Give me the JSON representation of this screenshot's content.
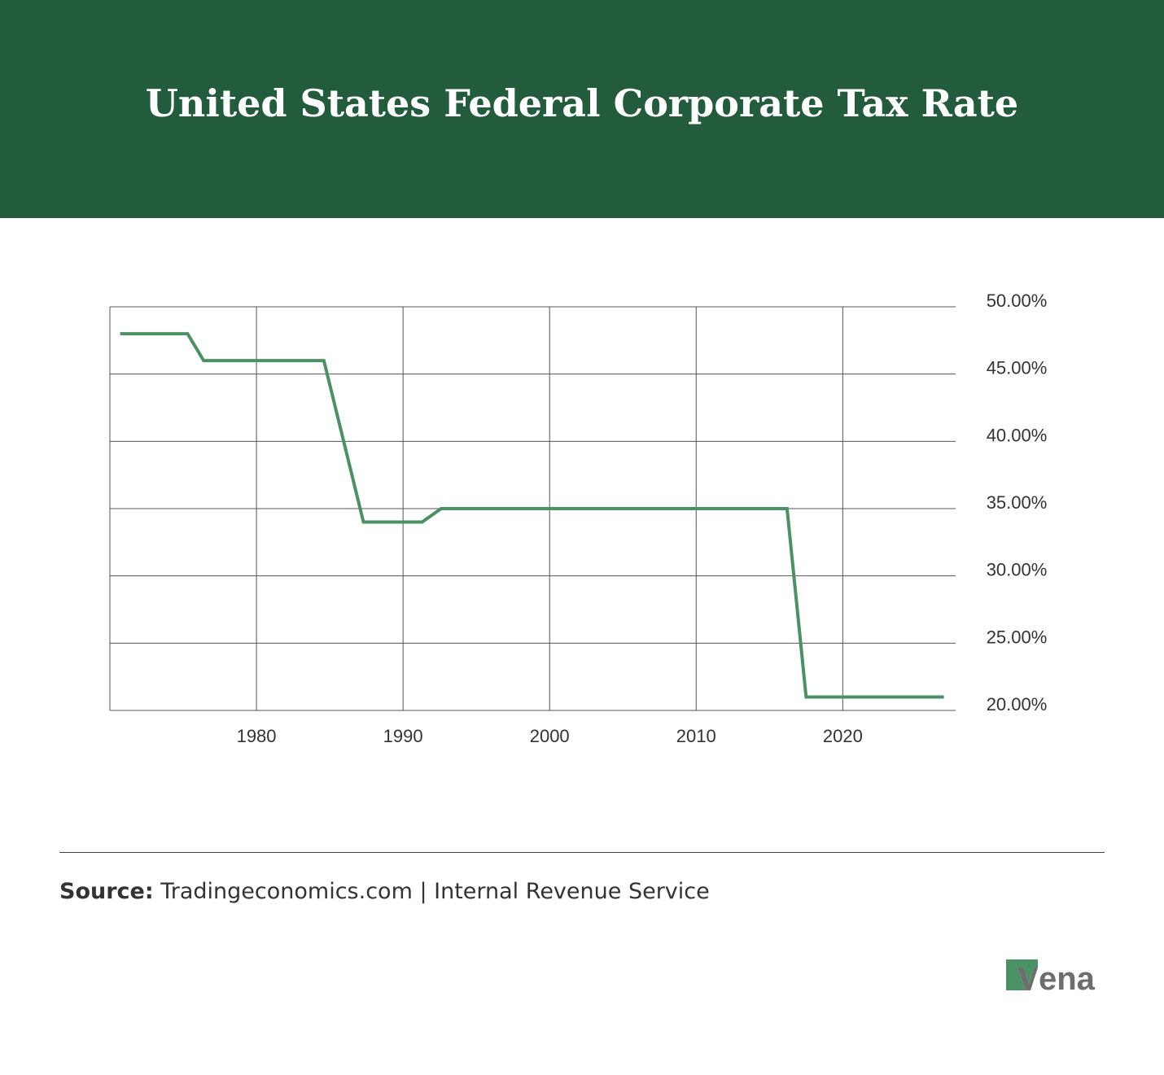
{
  "header": {
    "title": "United States Federal Corporate Tax Rate"
  },
  "chart_data": {
    "type": "line",
    "title": "United States Federal Corporate Tax Rate",
    "xlabel": "",
    "ylabel": "",
    "xlim": [
      1970,
      2027.7
    ],
    "ylim": [
      20,
      50
    ],
    "x_ticks": [
      1980,
      1990,
      2000,
      2010,
      2020
    ],
    "y_ticks": [
      "50.00%",
      "45.00%",
      "40.00%",
      "35.00%",
      "30.00%",
      "25.00%",
      "20.00%"
    ],
    "y_tick_values": [
      50,
      45,
      40,
      35,
      30,
      25,
      20
    ],
    "y_axis_side": "right",
    "grid": true,
    "line_color": "#4a9163",
    "series": [
      {
        "x": [
          1970.7,
          1975.3,
          1976.4,
          1984.6,
          1987.3,
          1991.3,
          1992.6,
          2016.2,
          2017.5,
          2026.9
        ],
        "values": [
          48,
          48,
          46,
          46,
          34,
          34,
          35,
          35,
          21,
          21
        ]
      }
    ]
  },
  "footer": {
    "source_label": "Source:",
    "source_text": " Tradingeconomics.com | Internal Revenue Service"
  },
  "logo": {
    "text": "vena",
    "green": "#4a9163",
    "gray": "#6d6e6d"
  }
}
